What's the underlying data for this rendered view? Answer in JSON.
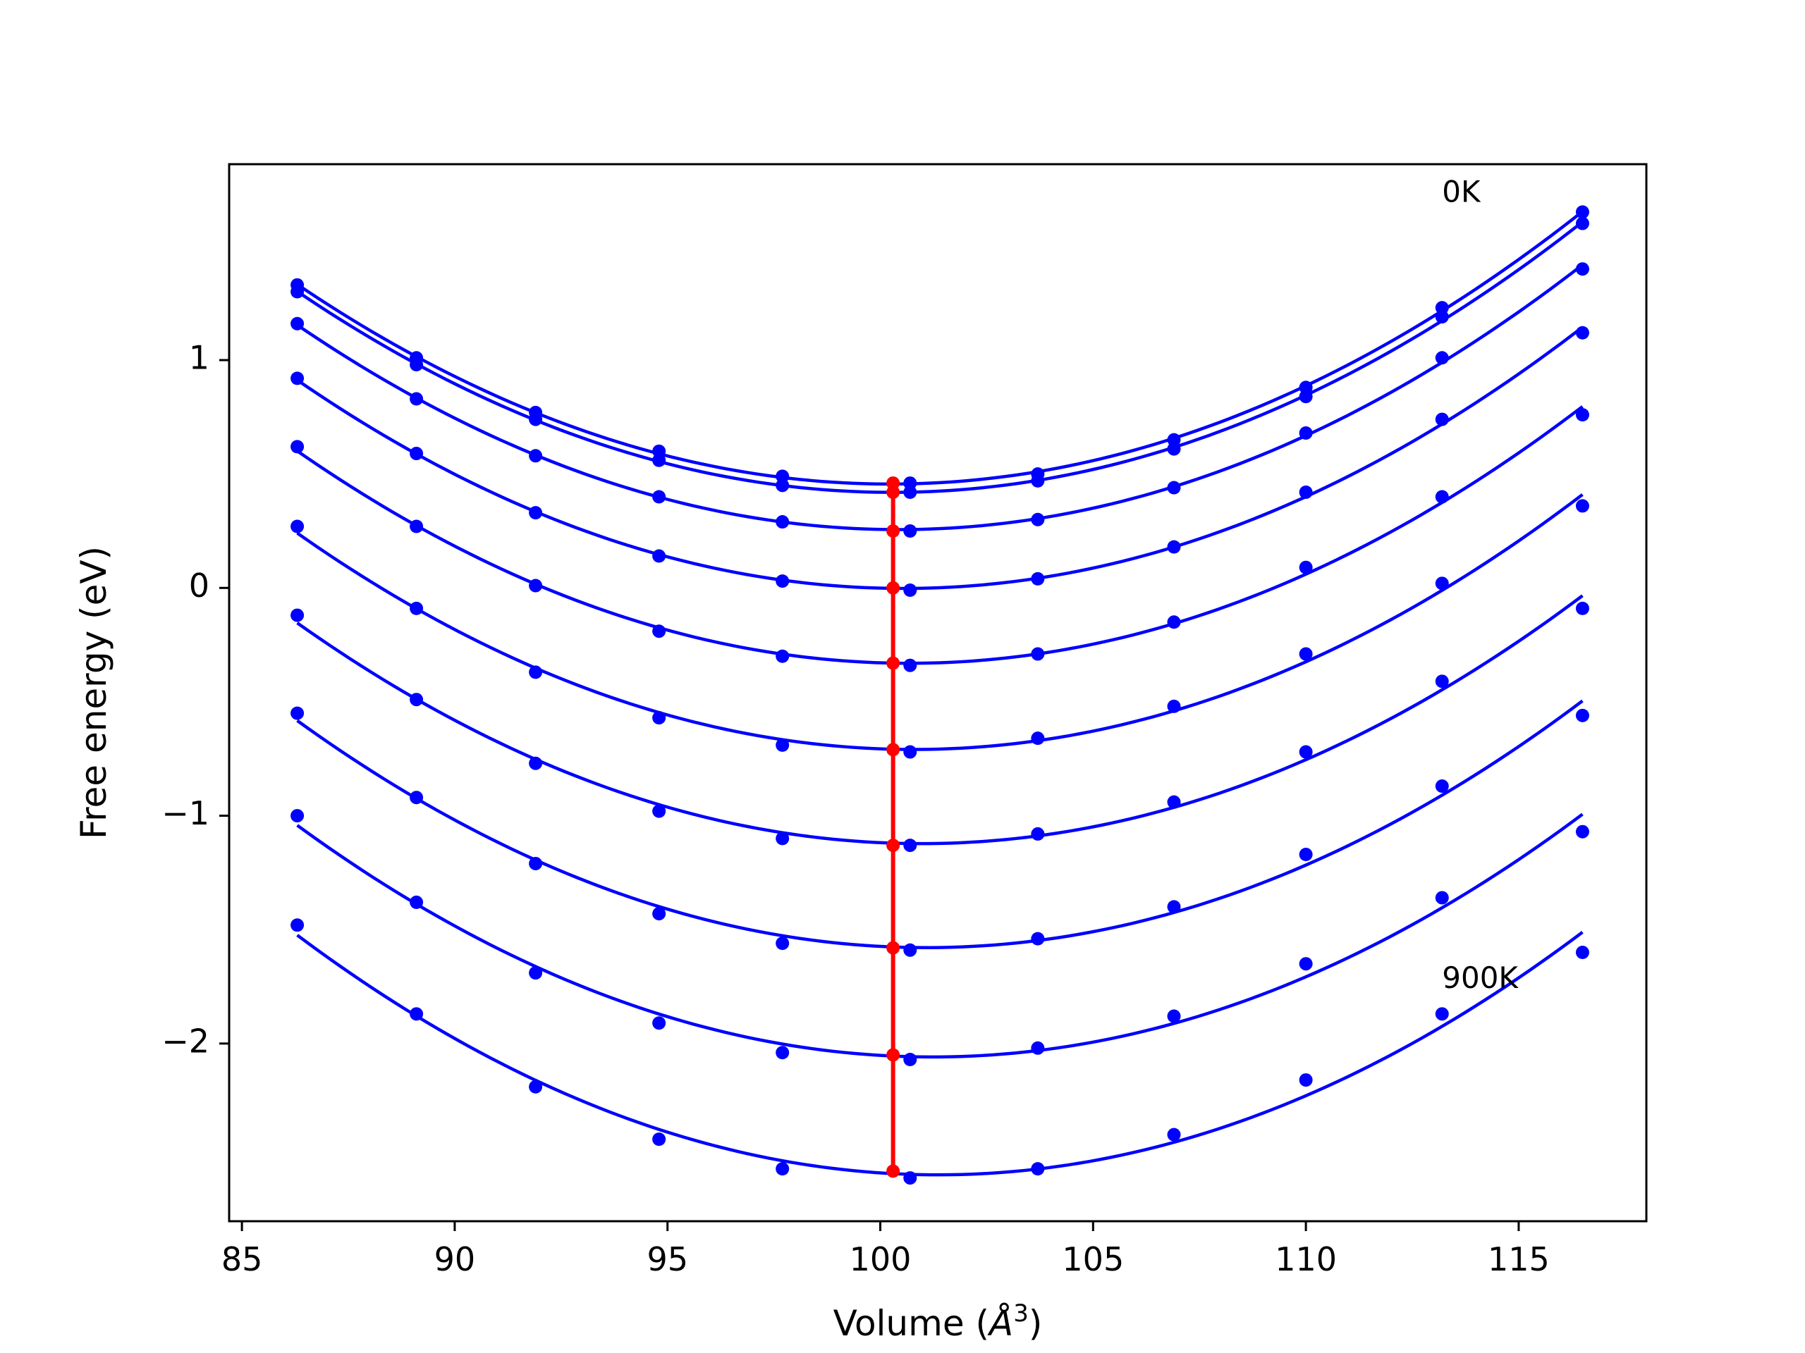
{
  "chart_data": {
    "type": "line",
    "title": "",
    "xlabel": "Volume (",
    "xlabel_symbol": "Å",
    "xlabel_exponent": "3",
    "xlabel_close": ")",
    "ylabel": "Free energy (eV)",
    "xlim": [
      84.7,
      118.0
    ],
    "ylim": [
      -2.78,
      1.86
    ],
    "xticks": [
      85,
      90,
      95,
      100,
      105,
      110,
      115
    ],
    "xtick_labels": [
      "85",
      "90",
      "95",
      "100",
      "105",
      "110",
      "115"
    ],
    "yticks": [
      -2,
      -1,
      0,
      1
    ],
    "ytick_labels": [
      "−2",
      "−1",
      "0",
      "1"
    ],
    "grid": false,
    "legend": "none",
    "x": [
      86.3,
      89.1,
      91.9,
      94.8,
      97.7,
      100.7,
      103.7,
      106.9,
      110.0,
      113.2,
      116.5
    ],
    "series": [
      {
        "color": "#0000ff",
        "values": [
          1.33,
          1.01,
          0.77,
          0.6,
          0.49,
          0.46,
          0.5,
          0.65,
          0.88,
          1.23,
          1.65
        ]
      },
      {
        "color": "#0000ff",
        "values": [
          1.3,
          0.98,
          0.74,
          0.56,
          0.45,
          0.42,
          0.47,
          0.61,
          0.84,
          1.19,
          1.6
        ]
      },
      {
        "color": "#0000ff",
        "values": [
          1.16,
          0.83,
          0.58,
          0.4,
          0.29,
          0.25,
          0.3,
          0.44,
          0.68,
          1.01,
          1.4
        ]
      },
      {
        "color": "#0000ff",
        "values": [
          0.92,
          0.59,
          0.33,
          0.14,
          0.03,
          -0.01,
          0.04,
          0.18,
          0.42,
          0.74,
          1.12
        ]
      },
      {
        "color": "#0000ff",
        "values": [
          0.62,
          0.27,
          0.01,
          -0.19,
          -0.3,
          -0.34,
          -0.29,
          -0.15,
          0.09,
          0.4,
          0.76
        ]
      },
      {
        "color": "#0000ff",
        "values": [
          0.27,
          -0.09,
          -0.37,
          -0.57,
          -0.69,
          -0.72,
          -0.66,
          -0.52,
          -0.29,
          0.02,
          0.36
        ]
      },
      {
        "color": "#0000ff",
        "values": [
          -0.12,
          -0.49,
          -0.77,
          -0.98,
          -1.1,
          -1.13,
          -1.08,
          -0.94,
          -0.72,
          -0.41,
          -0.09
        ]
      },
      {
        "color": "#0000ff",
        "values": [
          -0.55,
          -0.92,
          -1.21,
          -1.43,
          -1.56,
          -1.59,
          -1.54,
          -1.4,
          -1.17,
          -0.87,
          -0.56
        ]
      },
      {
        "color": "#0000ff",
        "values": [
          -1.0,
          -1.38,
          -1.69,
          -1.91,
          -2.04,
          -2.07,
          -2.02,
          -1.88,
          -1.65,
          -1.36,
          -1.07
        ]
      },
      {
        "color": "#0000ff",
        "values": [
          -1.48,
          -1.87,
          -2.19,
          -2.42,
          -2.55,
          -2.59,
          -2.55,
          -2.4,
          -2.16,
          -1.87,
          -1.6
        ]
      }
    ],
    "minima": {
      "color": "#ff0000",
      "x": [
        100.3,
        100.3,
        100.3,
        100.3,
        100.3,
        100.3,
        100.3,
        100.3,
        100.3,
        100.3
      ],
      "y": [
        0.46,
        0.42,
        0.25,
        0.0,
        -0.33,
        -0.71,
        -1.13,
        -1.58,
        -2.05,
        -2.56
      ]
    },
    "annotations": [
      {
        "text": "0K",
        "x": 113.2,
        "y": 1.73
      },
      {
        "text": "900K",
        "x": 113.2,
        "y": -1.72
      }
    ]
  }
}
